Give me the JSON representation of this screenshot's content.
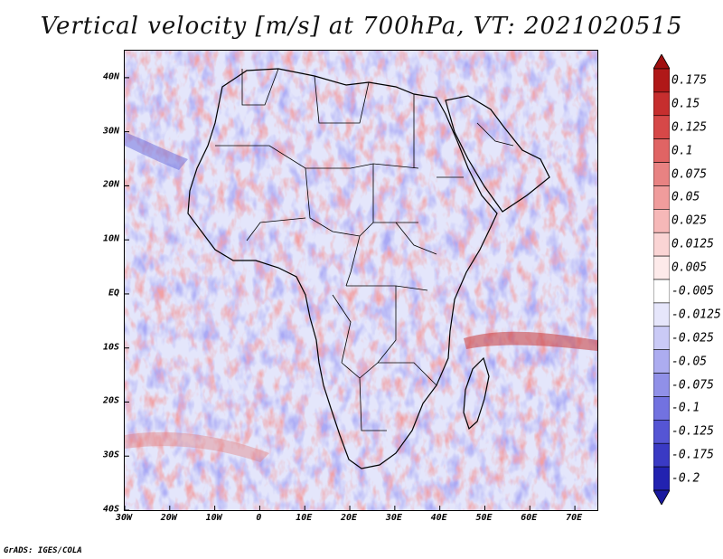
{
  "title": "Vertical velocity [m/s] at 700hPa, VT: 2021020515",
  "credit": "GrADS: IGES/COLA",
  "map": {
    "region": "Africa",
    "lon_range": [
      -30,
      75
    ],
    "lat_range": [
      -40,
      45
    ],
    "lat_ticks": [
      {
        "value": 40,
        "label": "40N"
      },
      {
        "value": 30,
        "label": "30N"
      },
      {
        "value": 20,
        "label": "20N"
      },
      {
        "value": 10,
        "label": "10N"
      },
      {
        "value": 0,
        "label": "EQ"
      },
      {
        "value": -10,
        "label": "10S"
      },
      {
        "value": -20,
        "label": "20S"
      },
      {
        "value": -30,
        "label": "30S"
      },
      {
        "value": -40,
        "label": "40S"
      }
    ],
    "lon_ticks": [
      {
        "value": -30,
        "label": "30W"
      },
      {
        "value": -20,
        "label": "20W"
      },
      {
        "value": -10,
        "label": "10W"
      },
      {
        "value": 0,
        "label": "0"
      },
      {
        "value": 10,
        "label": "10E"
      },
      {
        "value": 20,
        "label": "20E"
      },
      {
        "value": 30,
        "label": "30E"
      },
      {
        "value": 40,
        "label": "40E"
      },
      {
        "value": 50,
        "label": "50E"
      },
      {
        "value": 60,
        "label": "60E"
      },
      {
        "value": 70,
        "label": "70E"
      }
    ]
  },
  "colorbar": {
    "levels": [
      {
        "label": "0.175",
        "color": "#b01818"
      },
      {
        "label": "0.15",
        "color": "#c62e2e"
      },
      {
        "label": "0.125",
        "color": "#d64848"
      },
      {
        "label": "0.1",
        "color": "#e06464"
      },
      {
        "label": "0.075",
        "color": "#e88282"
      },
      {
        "label": "0.05",
        "color": "#f09c9c"
      },
      {
        "label": "0.025",
        "color": "#f6b8b8"
      },
      {
        "label": "0.0125",
        "color": "#fad4d4"
      },
      {
        "label": "0.005",
        "color": "#fdeaea"
      },
      {
        "label": "-0.005",
        "color": "#ffffff"
      },
      {
        "label": "-0.0125",
        "color": "#e6e6fb"
      },
      {
        "label": "-0.025",
        "color": "#cacaf6"
      },
      {
        "label": "-0.05",
        "color": "#acacf0"
      },
      {
        "label": "-0.075",
        "color": "#9090e8"
      },
      {
        "label": "-0.1",
        "color": "#7272e0"
      },
      {
        "label": "-0.125",
        "color": "#5555d4"
      },
      {
        "label": "-0.175",
        "color": "#3a3ac4"
      },
      {
        "label": "-0.2",
        "color": "#2222b0"
      }
    ],
    "top_color": "#a01010",
    "bottom_color": "#1a1aa0"
  }
}
